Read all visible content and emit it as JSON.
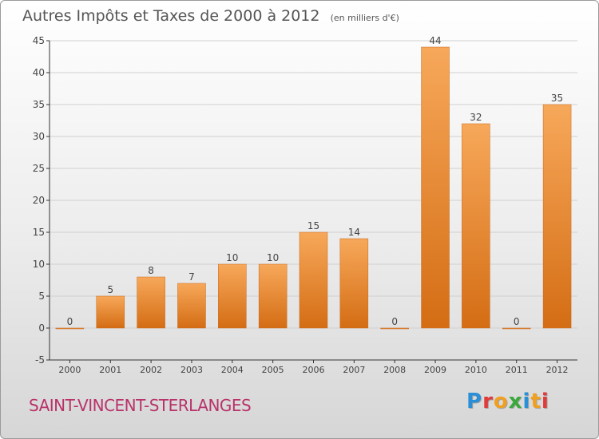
{
  "title": "Autres Impôts et Taxes de 2000 à 2012",
  "unit_note": "(en milliers d'€)",
  "commune": "SAINT-VINCENT-STERLANGES",
  "logo": {
    "text": "Proxiti",
    "letters": [
      "P",
      "r",
      "o",
      "x",
      "i",
      "t",
      "i"
    ],
    "colors": [
      "#2a8fd6",
      "#e03a3a",
      "#f0a020",
      "#3aa83a",
      "#2a8fd6",
      "#f0a020",
      "#e03a3a"
    ]
  },
  "colors": {
    "bar_top": "#f7a85a",
    "bar_bottom": "#d46d14",
    "axis": "#333333",
    "grid": "#d0d0d0",
    "title": "#555555",
    "commune": "#b8336a"
  },
  "chart_data": {
    "type": "bar",
    "title": "Autres Impôts et Taxes de 2000 à 2012",
    "categories": [
      "2000",
      "2001",
      "2002",
      "2003",
      "2004",
      "2005",
      "2006",
      "2007",
      "2008",
      "2009",
      "2010",
      "2011",
      "2012"
    ],
    "values": [
      0,
      5,
      8,
      7,
      10,
      10,
      15,
      14,
      0,
      44,
      32,
      0,
      35
    ],
    "xlabel": "",
    "ylabel": "",
    "ylim": [
      -5,
      45
    ],
    "yticks": [
      -5,
      0,
      5,
      10,
      15,
      20,
      25,
      30,
      35,
      40,
      45
    ],
    "grid": true,
    "legend": "none"
  }
}
